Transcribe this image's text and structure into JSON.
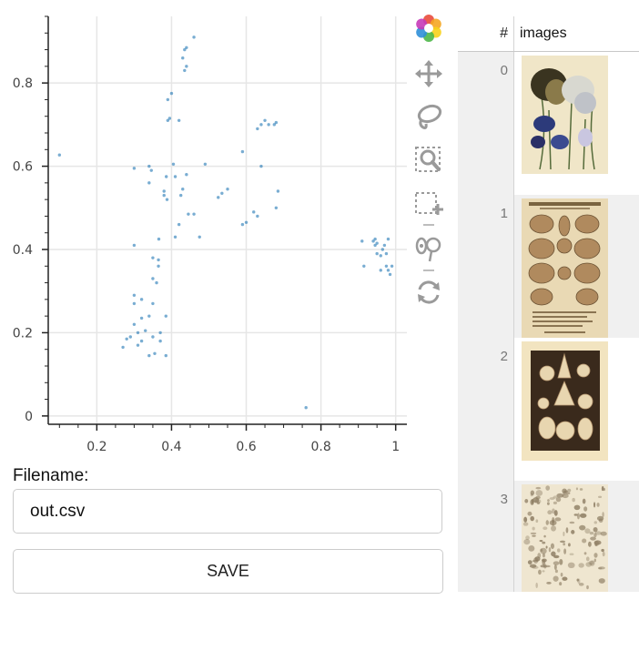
{
  "toolbar": {
    "tools": [
      {
        "name": "bokeh-logo-icon"
      },
      {
        "name": "pan-tool-icon"
      },
      {
        "name": "lasso-select-icon"
      },
      {
        "name": "box-zoom-icon"
      },
      {
        "name": "box-select-icon"
      },
      {
        "name": "hover-tool-icon"
      },
      {
        "name": "reset-tool-icon"
      }
    ]
  },
  "form": {
    "filename_label": "Filename:",
    "filename_value": "out.csv",
    "save_label": "SAVE"
  },
  "table": {
    "columns": [
      "#",
      "images"
    ],
    "rows": [
      {
        "index": "0",
        "thumbnail": "iris-botanical-illustration"
      },
      {
        "index": "1",
        "thumbnail": "mollusques-marins-shell-plate"
      },
      {
        "index": "2",
        "thumbnail": "radiolarian-plate-dark"
      },
      {
        "index": "3",
        "thumbnail": "engraved-specimens-plate"
      }
    ]
  },
  "chart_data": {
    "type": "scatter",
    "xlim": [
      0.07,
      1.03
    ],
    "ylim": [
      -0.02,
      0.96
    ],
    "xticks": [
      0.2,
      0.4,
      0.6,
      0.8,
      1
    ],
    "yticks": [
      0,
      0.2,
      0.4,
      0.6,
      0.8
    ],
    "grid": true,
    "point_color": "#1f77b4",
    "points": [
      [
        0.1,
        0.627
      ],
      [
        0.3,
        0.595
      ],
      [
        0.34,
        0.6
      ],
      [
        0.346,
        0.59
      ],
      [
        0.34,
        0.56
      ],
      [
        0.386,
        0.575
      ],
      [
        0.38,
        0.54
      ],
      [
        0.38,
        0.53
      ],
      [
        0.388,
        0.52
      ],
      [
        0.366,
        0.425
      ],
      [
        0.3,
        0.41
      ],
      [
        0.41,
        0.43
      ],
      [
        0.35,
        0.38
      ],
      [
        0.35,
        0.33
      ],
      [
        0.365,
        0.375
      ],
      [
        0.365,
        0.36
      ],
      [
        0.36,
        0.32
      ],
      [
        0.3,
        0.29
      ],
      [
        0.3,
        0.27
      ],
      [
        0.32,
        0.28
      ],
      [
        0.35,
        0.27
      ],
      [
        0.32,
        0.235
      ],
      [
        0.3,
        0.22
      ],
      [
        0.31,
        0.2
      ],
      [
        0.33,
        0.205
      ],
      [
        0.34,
        0.24
      ],
      [
        0.385,
        0.24
      ],
      [
        0.37,
        0.2
      ],
      [
        0.37,
        0.18
      ],
      [
        0.35,
        0.19
      ],
      [
        0.355,
        0.15
      ],
      [
        0.34,
        0.145
      ],
      [
        0.385,
        0.145
      ],
      [
        0.29,
        0.19
      ],
      [
        0.28,
        0.185
      ],
      [
        0.27,
        0.165
      ],
      [
        0.31,
        0.17
      ],
      [
        0.32,
        0.18
      ],
      [
        0.39,
        0.71
      ],
      [
        0.395,
        0.715
      ],
      [
        0.4,
        0.775
      ],
      [
        0.39,
        0.76
      ],
      [
        0.42,
        0.71
      ],
      [
        0.405,
        0.605
      ],
      [
        0.41,
        0.575
      ],
      [
        0.425,
        0.53
      ],
      [
        0.43,
        0.545
      ],
      [
        0.42,
        0.46
      ],
      [
        0.445,
        0.485
      ],
      [
        0.46,
        0.485
      ],
      [
        0.44,
        0.58
      ],
      [
        0.475,
        0.43
      ],
      [
        0.49,
        0.605
      ],
      [
        0.435,
        0.88
      ],
      [
        0.44,
        0.885
      ],
      [
        0.43,
        0.86
      ],
      [
        0.44,
        0.84
      ],
      [
        0.435,
        0.83
      ],
      [
        0.46,
        0.91
      ],
      [
        0.525,
        0.525
      ],
      [
        0.535,
        0.535
      ],
      [
        0.55,
        0.545
      ],
      [
        0.59,
        0.635
      ],
      [
        0.59,
        0.46
      ],
      [
        0.6,
        0.465
      ],
      [
        0.62,
        0.49
      ],
      [
        0.63,
        0.48
      ],
      [
        0.63,
        0.69
      ],
      [
        0.64,
        0.7
      ],
      [
        0.65,
        0.71
      ],
      [
        0.66,
        0.7
      ],
      [
        0.675,
        0.7
      ],
      [
        0.68,
        0.705
      ],
      [
        0.64,
        0.6
      ],
      [
        0.685,
        0.54
      ],
      [
        0.68,
        0.5
      ],
      [
        0.76,
        0.02
      ],
      [
        0.91,
        0.42
      ],
      [
        0.915,
        0.36
      ],
      [
        0.94,
        0.42
      ],
      [
        0.945,
        0.425
      ],
      [
        0.95,
        0.415
      ],
      [
        0.96,
        0.385
      ],
      [
        0.965,
        0.4
      ],
      [
        0.97,
        0.41
      ],
      [
        0.975,
        0.36
      ],
      [
        0.98,
        0.35
      ],
      [
        0.98,
        0.425
      ],
      [
        0.985,
        0.34
      ],
      [
        0.99,
        0.36
      ],
      [
        0.95,
        0.39
      ],
      [
        0.96,
        0.35
      ],
      [
        0.975,
        0.39
      ],
      [
        0.945,
        0.41
      ]
    ]
  }
}
